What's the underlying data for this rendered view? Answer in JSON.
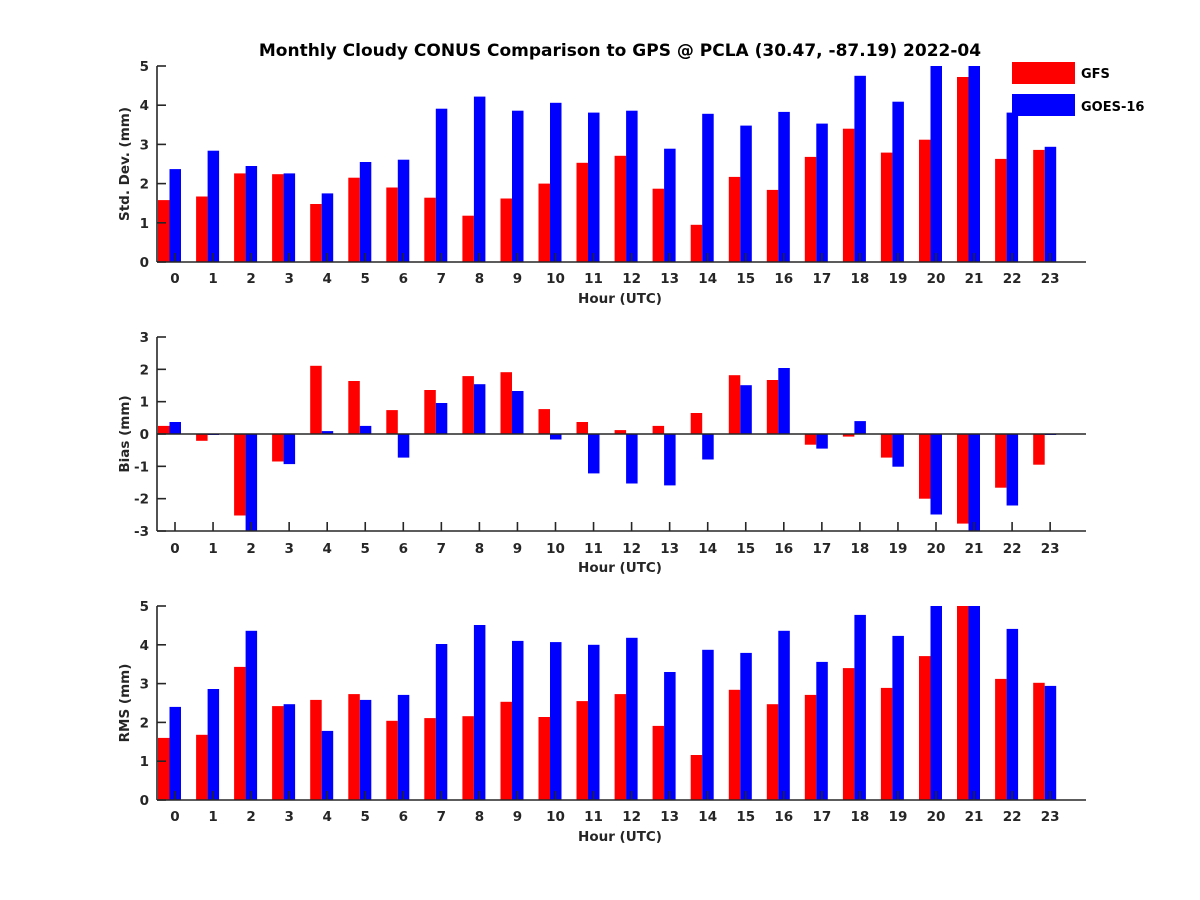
{
  "chart_data": {
    "type": "bar",
    "title": "Monthly Cloudy CONUS Comparison to GPS @ PCLA (30.47, -87.19) 2022-04",
    "legend": {
      "placement": "top-right",
      "entries": [
        {
          "name": "GFS",
          "color": "#ff0000"
        },
        {
          "name": "GOES-16",
          "color": "#0000ff"
        }
      ]
    },
    "categories": [
      "0",
      "1",
      "2",
      "3",
      "4",
      "5",
      "6",
      "7",
      "8",
      "9",
      "10",
      "11",
      "12",
      "13",
      "14",
      "15",
      "16",
      "17",
      "18",
      "19",
      "20",
      "21",
      "22",
      "23"
    ],
    "panels": [
      {
        "id": "stddev",
        "ylabel": "Std. Dev. (mm)",
        "xlabel": "Hour (UTC)",
        "ylim": [
          0,
          5
        ],
        "yticks": [
          0,
          1,
          2,
          3,
          4,
          5
        ],
        "zero_line": false,
        "series": [
          {
            "name": "GFS",
            "values": [
              1.58,
              1.67,
              2.26,
              2.24,
              1.48,
              2.15,
              1.9,
              1.64,
              1.18,
              1.62,
              2.0,
              2.53,
              2.71,
              1.87,
              0.95,
              2.17,
              1.84,
              2.68,
              3.4,
              2.79,
              3.12,
              4.72,
              2.63,
              2.86
            ]
          },
          {
            "name": "GOES-16",
            "values": [
              2.37,
              2.84,
              2.45,
              2.26,
              1.75,
              2.55,
              2.61,
              3.91,
              4.22,
              3.86,
              4.06,
              3.81,
              3.86,
              2.89,
              3.78,
              3.48,
              3.83,
              3.53,
              4.75,
              4.09,
              5.0,
              5.0,
              3.81,
              2.94
            ]
          }
        ]
      },
      {
        "id": "bias",
        "ylabel": "Bias (mm)",
        "xlabel": "Hour (UTC)",
        "ylim": [
          -3,
          3
        ],
        "yticks": [
          -3,
          -2,
          -1,
          0,
          1,
          2,
          3
        ],
        "zero_line": true,
        "series": [
          {
            "name": "GFS",
            "values": [
              0.25,
              -0.21,
              -2.52,
              -0.85,
              2.11,
              1.64,
              0.74,
              1.36,
              1.79,
              1.91,
              0.77,
              0.37,
              0.12,
              0.25,
              0.65,
              1.82,
              1.67,
              -0.33,
              -0.08,
              -0.73,
              -2.0,
              -2.77,
              -1.66,
              -0.95
            ]
          },
          {
            "name": "GOES-16",
            "values": [
              0.37,
              -0.03,
              -3.0,
              -0.93,
              0.09,
              0.25,
              -0.73,
              0.96,
              1.54,
              1.33,
              -0.17,
              -1.22,
              -1.53,
              -1.59,
              -0.79,
              1.51,
              2.04,
              -0.45,
              0.4,
              -1.01,
              -2.49,
              -3.0,
              -2.21,
              -0.03
            ]
          }
        ]
      },
      {
        "id": "rms",
        "ylabel": "RMS (mm)",
        "xlabel": "Hour (UTC)",
        "ylim": [
          0,
          5
        ],
        "yticks": [
          0,
          1,
          2,
          3,
          4,
          5
        ],
        "zero_line": false,
        "series": [
          {
            "name": "GFS",
            "values": [
              1.6,
              1.68,
              3.43,
              2.42,
              2.58,
              2.73,
              2.04,
              2.11,
              2.16,
              2.53,
              2.14,
              2.55,
              2.73,
              1.91,
              1.16,
              2.84,
              2.47,
              2.71,
              3.4,
              2.89,
              3.71,
              5.0,
              3.12,
              3.02
            ]
          },
          {
            "name": "GOES-16",
            "values": [
              2.4,
              2.86,
              4.36,
              2.47,
              1.78,
              2.58,
              2.71,
              4.02,
              4.51,
              4.1,
              4.07,
              4.0,
              4.18,
              3.3,
              3.87,
              3.79,
              4.36,
              3.56,
              4.77,
              4.23,
              5.0,
              5.0,
              4.41,
              2.94
            ]
          }
        ]
      }
    ]
  }
}
